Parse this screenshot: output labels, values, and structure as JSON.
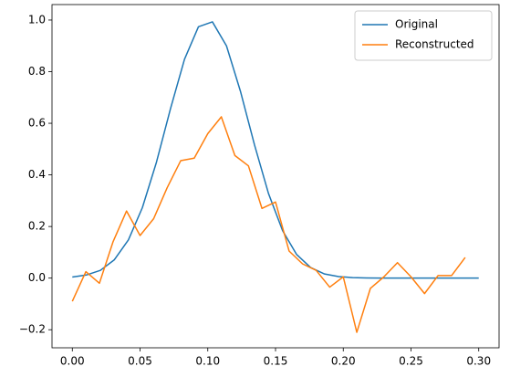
{
  "chart_data": {
    "type": "line",
    "legend": "upper right",
    "grid": false,
    "xlim": [
      -0.015,
      0.315
    ],
    "ylim": [
      -0.27,
      1.06
    ],
    "xticks": [
      {
        "value": 0,
        "label": "0.00"
      },
      {
        "value": 0.05,
        "label": "0.05"
      },
      {
        "value": 0.1,
        "label": "0.10"
      },
      {
        "value": 0.15,
        "label": "0.15"
      },
      {
        "value": 0.2,
        "label": "0.20"
      },
      {
        "value": 0.25,
        "label": "0.25"
      },
      {
        "value": 0.3,
        "label": "0.30"
      }
    ],
    "yticks": [
      {
        "value": -0.2,
        "label": "−0.2"
      },
      {
        "value": 0,
        "label": "0.0"
      },
      {
        "value": 0.2,
        "label": "0.2"
      },
      {
        "value": 0.4,
        "label": "0.4"
      },
      {
        "value": 0.6,
        "label": "0.6"
      },
      {
        "value": 0.8,
        "label": "0.8"
      },
      {
        "value": 1,
        "label": "1.0"
      }
    ],
    "series": [
      {
        "name": "Original",
        "color": "#1f77b4",
        "x": [
          0,
          0.0103,
          0.0207,
          0.031,
          0.0414,
          0.0517,
          0.0621,
          0.0724,
          0.0828,
          0.0931,
          0.1034,
          0.1138,
          0.1241,
          0.1345,
          0.1448,
          0.1552,
          0.1655,
          0.1759,
          0.1862,
          0.1966,
          0.2069,
          0.2172,
          0.2276,
          0.2379,
          0.2483,
          0.2586,
          0.269,
          0.2793,
          0.2897,
          0.3
        ],
        "values": [
          0.004,
          0.012,
          0.03,
          0.071,
          0.148,
          0.273,
          0.449,
          0.655,
          0.848,
          0.974,
          0.993,
          0.9,
          0.724,
          0.516,
          0.328,
          0.184,
          0.092,
          0.041,
          0.016,
          0.006,
          0.002,
          0.0005,
          0,
          0,
          0,
          0,
          0,
          0,
          0,
          0
        ]
      },
      {
        "name": "Reconstructed",
        "color": "#ff7f0e",
        "x": [
          0,
          0.01,
          0.02,
          0.03,
          0.04,
          0.05,
          0.06,
          0.07,
          0.08,
          0.09,
          0.1,
          0.11,
          0.12,
          0.13,
          0.14,
          0.15,
          0.16,
          0.17,
          0.18,
          0.19,
          0.2,
          0.21,
          0.22,
          0.23,
          0.24,
          0.25,
          0.26,
          0.27,
          0.28,
          0.29
        ],
        "values": [
          -0.09,
          0.025,
          -0.02,
          0.14,
          0.26,
          0.165,
          0.23,
          0.35,
          0.455,
          0.465,
          0.56,
          0.625,
          0.475,
          0.435,
          0.27,
          0.295,
          0.105,
          0.055,
          0.03,
          -0.035,
          0.005,
          -0.21,
          -0.04,
          0.005,
          0.06,
          0.005,
          -0.06,
          0.01,
          0.01,
          0.08
        ]
      }
    ]
  }
}
